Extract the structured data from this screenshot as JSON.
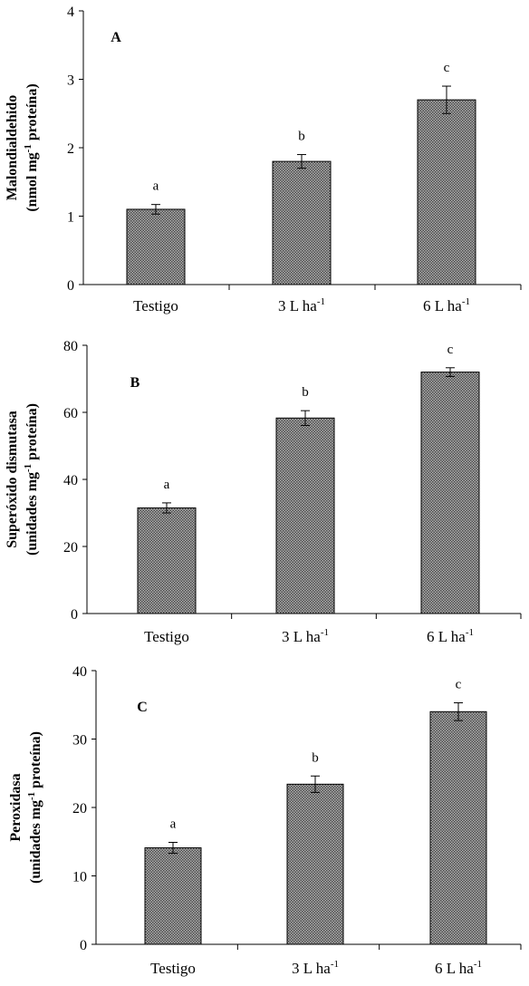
{
  "chart_data": [
    {
      "type": "bar",
      "panel_label": "A",
      "categories": [
        "Testigo",
        "3 L ha",
        "6 L ha"
      ],
      "category_superscripts": [
        "",
        "-1",
        "-1"
      ],
      "values": [
        1.1,
        1.8,
        2.7
      ],
      "errors": [
        0.07,
        0.1,
        0.2
      ],
      "letters": [
        "a",
        "b",
        "c"
      ],
      "ylabel_lines": [
        {
          "parts": [
            {
              "text": "Malondialdehido",
              "sup": false
            }
          ]
        },
        {
          "parts": [
            {
              "text": "(nmol mg",
              "sup": false
            },
            {
              "text": "-1",
              "sup": true
            },
            {
              "text": " proteína)",
              "sup": false
            }
          ]
        }
      ],
      "ylim": [
        0,
        4
      ],
      "yticks": [
        0,
        1,
        2,
        3,
        4
      ],
      "bar_color": "#888888"
    },
    {
      "type": "bar",
      "panel_label": "B",
      "categories": [
        "Testigo",
        "3 L ha",
        "6 L ha"
      ],
      "category_superscripts": [
        "",
        "-1",
        "-1"
      ],
      "values": [
        31.5,
        58.3,
        72.0
      ],
      "errors": [
        1.5,
        2.2,
        1.3
      ],
      "letters": [
        "a",
        "b",
        "c"
      ],
      "ylabel_lines": [
        {
          "parts": [
            {
              "text": "Superóxido  dismutasa",
              "sup": false
            }
          ]
        },
        {
          "parts": [
            {
              "text": "(unidades  mg",
              "sup": false
            },
            {
              "text": "-1",
              "sup": true
            },
            {
              "text": "  proteína)",
              "sup": false
            }
          ]
        }
      ],
      "ylim": [
        0,
        80
      ],
      "yticks": [
        0,
        20,
        40,
        60,
        80
      ],
      "bar_color": "#888888"
    },
    {
      "type": "bar",
      "panel_label": "C",
      "categories": [
        "Testigo",
        "3 L ha",
        "6 L ha"
      ],
      "category_superscripts": [
        "",
        "-1",
        "-1"
      ],
      "values": [
        14.1,
        23.4,
        34.0
      ],
      "errors": [
        0.8,
        1.2,
        1.3
      ],
      "letters": [
        "a",
        "b",
        "c"
      ],
      "ylabel_lines": [
        {
          "parts": [
            {
              "text": "Peroxidasa",
              "sup": false
            }
          ]
        },
        {
          "parts": [
            {
              "text": "(unidades mg",
              "sup": false
            },
            {
              "text": "-1",
              "sup": true
            },
            {
              "text": " proteína)",
              "sup": false
            }
          ]
        }
      ],
      "ylim": [
        0,
        40
      ],
      "yticks": [
        0,
        10,
        20,
        30,
        40
      ],
      "bar_color": "#888888"
    }
  ]
}
